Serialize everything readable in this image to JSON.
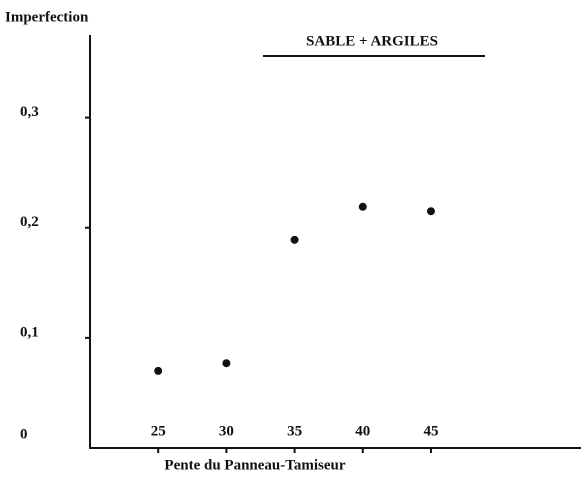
{
  "chart_data": {
    "type": "scatter",
    "title": "SABLE + ARGILES",
    "y_label": "Imperfection",
    "x_label": "Pente du Panneau-Tamiseur",
    "x": [
      25,
      30,
      35,
      40,
      45
    ],
    "values": [
      0.07,
      0.077,
      0.189,
      0.219,
      0.215
    ],
    "color": "#111111",
    "xlim": [
      20,
      56
    ],
    "ylim": [
      0,
      0.375
    ],
    "xticks": [
      25,
      30,
      35,
      40,
      45
    ],
    "yticks": [
      0,
      {
        "value": 0.1,
        "label": "0,1"
      },
      {
        "value": 0.2,
        "label": "0,2"
      },
      {
        "value": 0.3,
        "label": "0,3"
      }
    ]
  }
}
